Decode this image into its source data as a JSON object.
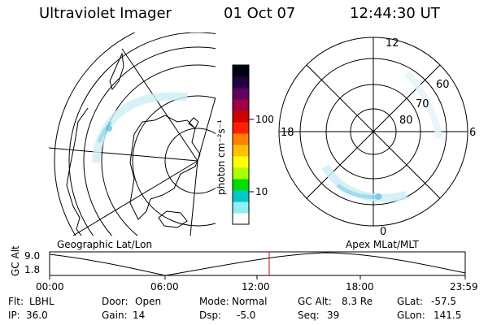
{
  "header": {
    "title": "Ultraviolet Imager",
    "date": "01 Oct 07",
    "time": "12:44:30 UT"
  },
  "left_panel": {
    "caption": "Geographic Lat/Lon"
  },
  "right_panel": {
    "caption": "Apex MLat/MLT",
    "mlt_labels": [
      "12",
      "18",
      "6",
      "0"
    ],
    "mlat_labels": [
      "60",
      "70",
      "80"
    ]
  },
  "colorbar": {
    "unit_label": "photon cm⁻²s⁻¹",
    "ticks": [
      "100",
      "10"
    ],
    "colors": [
      "#ffffff",
      "#8ef0f0",
      "#00c8c8",
      "#00e000",
      "#a8ff00",
      "#ffff00",
      "#ffc000",
      "#ff8000",
      "#ff2000",
      "#d00000",
      "#a00040",
      "#600060",
      "#200040",
      "#000010"
    ]
  },
  "timeline": {
    "ylabel": "GC Alt",
    "y_ticks": [
      "9.0",
      "1.8"
    ],
    "x_ticks": [
      "00:00",
      "06:00",
      "12:00",
      "18:00",
      "23:59"
    ],
    "marker_time": "12:44:30"
  },
  "info": {
    "flt_label": "Flt:",
    "flt_value": "LBHL",
    "ip_label": "IP:",
    "ip_value": "36.0",
    "door_label": "Door:",
    "door_value": "Open",
    "gain_label": "Gain:",
    "gain_value": "14",
    "mode_label": "Mode:",
    "mode_value": "Normal",
    "dsp_label": "Dsp:",
    "dsp_value": "-5.0",
    "gcalt_label": "GC Alt:",
    "gcalt_value": "8.3 Re",
    "seq_label": "Seq:",
    "seq_value": "39",
    "glat_label": "GLat:",
    "glat_value": "-57.5",
    "glon_label": "GLon:",
    "glon_value": "141.5"
  }
}
